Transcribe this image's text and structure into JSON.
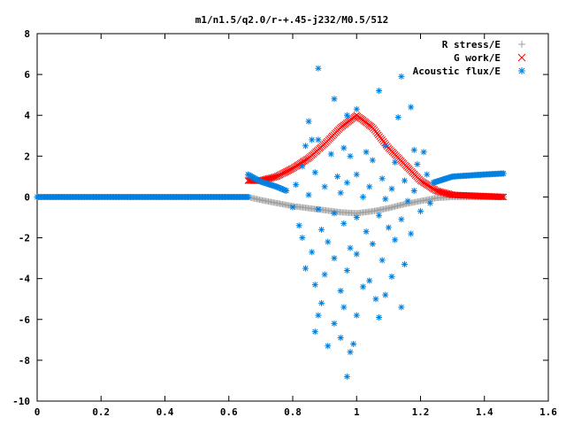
{
  "chart_data": {
    "type": "scatter",
    "title": "m1/n1.5/q2.0/r-+.45-j232/M0.5/512",
    "xlabel": "",
    "ylabel": "",
    "xlim": [
      0,
      1.6
    ],
    "ylim": [
      -10,
      8
    ],
    "xticks": [
      0,
      0.2,
      0.4,
      0.6,
      0.8,
      1,
      1.2,
      1.4,
      1.6
    ],
    "yticks": [
      -10,
      -8,
      -6,
      -4,
      -2,
      0,
      2,
      4,
      6,
      8
    ],
    "grid": false,
    "legend_position": "top-right",
    "series": [
      {
        "name": "R stress/E",
        "marker": "+",
        "color": "#a0a0a0",
        "dense_curve": true,
        "x_range": [
          0.66,
          1.46
        ],
        "points": [
          [
            0.66,
            0.0
          ],
          [
            0.7,
            -0.15
          ],
          [
            0.75,
            -0.3
          ],
          [
            0.8,
            -0.45
          ],
          [
            0.85,
            -0.55
          ],
          [
            0.9,
            -0.65
          ],
          [
            0.95,
            -0.75
          ],
          [
            1.0,
            -0.8
          ],
          [
            1.05,
            -0.7
          ],
          [
            1.1,
            -0.55
          ],
          [
            1.15,
            -0.35
          ],
          [
            1.2,
            -0.2
          ],
          [
            1.25,
            -0.05
          ],
          [
            1.3,
            0.0
          ],
          [
            1.46,
            0.0
          ]
        ]
      },
      {
        "name": "G work/E",
        "marker": "x",
        "color": "#ff0000",
        "dense_curve": true,
        "x_range": [
          0.66,
          1.46
        ],
        "points": [
          [
            0.66,
            0.8
          ],
          [
            0.7,
            0.8
          ],
          [
            0.75,
            1.0
          ],
          [
            0.8,
            1.4
          ],
          [
            0.85,
            1.9
          ],
          [
            0.9,
            2.6
          ],
          [
            0.95,
            3.4
          ],
          [
            1.0,
            4.0
          ],
          [
            1.05,
            3.4
          ],
          [
            1.1,
            2.4
          ],
          [
            1.15,
            1.6
          ],
          [
            1.2,
            0.8
          ],
          [
            1.25,
            0.3
          ],
          [
            1.3,
            0.1
          ],
          [
            1.46,
            0.0
          ]
        ]
      },
      {
        "name": "Acoustic flux/E",
        "marker": "*",
        "color": "#0080e0",
        "dense_curve_segments": [
          [
            [
              0.0,
              0.0
            ],
            [
              0.66,
              0.0
            ]
          ],
          [
            [
              0.66,
              1.1
            ],
            [
              0.7,
              0.75
            ],
            [
              0.75,
              0.5
            ],
            [
              0.78,
              0.3
            ]
          ],
          [
            [
              1.24,
              0.7
            ],
            [
              1.3,
              1.0
            ],
            [
              1.4,
              1.1
            ],
            [
              1.46,
              1.15
            ]
          ]
        ],
        "scatter_points": [
          [
            0.88,
            6.3
          ],
          [
            0.93,
            4.8
          ],
          [
            0.97,
            4.0
          ],
          [
            1.0,
            4.3
          ],
          [
            1.07,
            5.2
          ],
          [
            1.14,
            5.9
          ],
          [
            1.17,
            4.4
          ],
          [
            1.13,
            3.9
          ],
          [
            0.85,
            3.7
          ],
          [
            0.86,
            2.8
          ],
          [
            0.88,
            2.8
          ],
          [
            0.84,
            2.5
          ],
          [
            0.96,
            2.4
          ],
          [
            1.03,
            2.2
          ],
          [
            1.09,
            2.5
          ],
          [
            1.18,
            2.3
          ],
          [
            1.21,
            2.2
          ],
          [
            0.92,
            2.1
          ],
          [
            0.98,
            2.0
          ],
          [
            1.05,
            1.8
          ],
          [
            1.12,
            1.7
          ],
          [
            1.19,
            1.6
          ],
          [
            0.83,
            1.5
          ],
          [
            0.87,
            1.2
          ],
          [
            0.94,
            1.0
          ],
          [
            1.0,
            1.1
          ],
          [
            1.08,
            0.9
          ],
          [
            1.15,
            0.8
          ],
          [
            1.22,
            1.1
          ],
          [
            0.81,
            0.6
          ],
          [
            0.9,
            0.5
          ],
          [
            0.97,
            0.7
          ],
          [
            1.04,
            0.5
          ],
          [
            1.11,
            0.4
          ],
          [
            1.18,
            0.3
          ],
          [
            0.85,
            0.1
          ],
          [
            0.95,
            0.2
          ],
          [
            1.02,
            0.0
          ],
          [
            1.09,
            -0.1
          ],
          [
            1.16,
            -0.2
          ],
          [
            1.23,
            -0.3
          ],
          [
            0.8,
            -0.5
          ],
          [
            0.88,
            -0.6
          ],
          [
            0.93,
            -0.8
          ],
          [
            1.0,
            -1.0
          ],
          [
            1.07,
            -0.9
          ],
          [
            1.14,
            -1.1
          ],
          [
            1.2,
            -0.7
          ],
          [
            0.82,
            -1.4
          ],
          [
            0.89,
            -1.6
          ],
          [
            0.96,
            -1.3
          ],
          [
            1.03,
            -1.7
          ],
          [
            1.1,
            -1.5
          ],
          [
            1.17,
            -1.8
          ],
          [
            0.83,
            -2.0
          ],
          [
            0.91,
            -2.2
          ],
          [
            0.98,
            -2.5
          ],
          [
            1.05,
            -2.3
          ],
          [
            1.12,
            -2.1
          ],
          [
            0.86,
            -2.7
          ],
          [
            0.93,
            -3.0
          ],
          [
            1.0,
            -2.8
          ],
          [
            1.08,
            -3.1
          ],
          [
            1.15,
            -3.3
          ],
          [
            0.84,
            -3.5
          ],
          [
            0.9,
            -3.8
          ],
          [
            0.97,
            -3.6
          ],
          [
            1.04,
            -4.1
          ],
          [
            1.11,
            -3.9
          ],
          [
            0.87,
            -4.3
          ],
          [
            0.95,
            -4.6
          ],
          [
            1.02,
            -4.4
          ],
          [
            1.09,
            -4.8
          ],
          [
            0.89,
            -5.2
          ],
          [
            0.96,
            -5.4
          ],
          [
            1.06,
            -5.0
          ],
          [
            1.14,
            -5.4
          ],
          [
            0.88,
            -5.8
          ],
          [
            0.93,
            -6.2
          ],
          [
            1.0,
            -5.8
          ],
          [
            1.07,
            -5.9
          ],
          [
            0.87,
            -6.6
          ],
          [
            0.95,
            -6.9
          ],
          [
            0.99,
            -7.2
          ],
          [
            0.91,
            -7.3
          ],
          [
            0.98,
            -7.6
          ],
          [
            0.97,
            -8.8
          ]
        ]
      }
    ]
  }
}
